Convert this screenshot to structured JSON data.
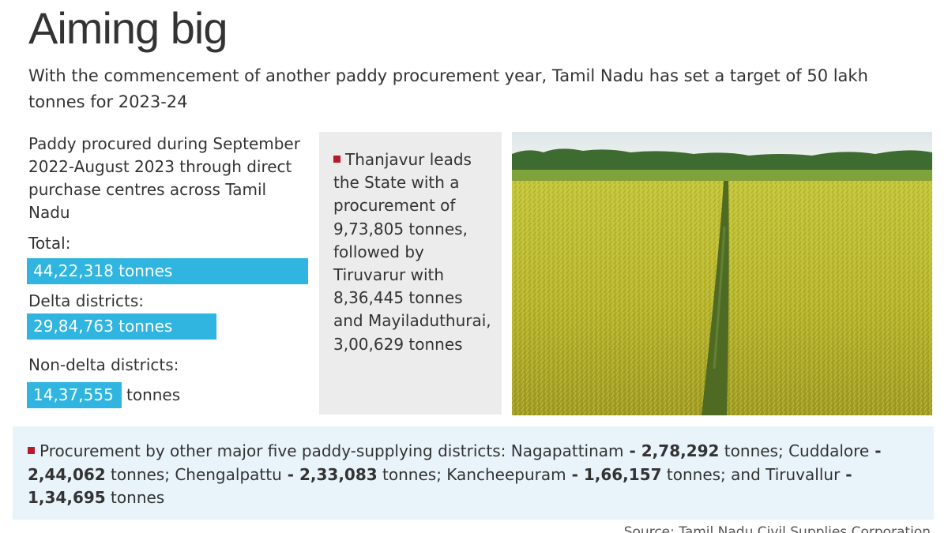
{
  "header": {
    "title": "Aiming big",
    "subtitle": "With the commencement of another paddy procurement year, Tamil Nadu has set a target of 50 lakh tonnes for 2023-24"
  },
  "procured": {
    "lead": "Paddy procured during September 2022-August 2023 through direct purchase centres across Tamil Nadu"
  },
  "chart_data": {
    "type": "bar",
    "orientation": "horizontal",
    "unit": "tonnes",
    "categories": [
      "Total:",
      "Delta districts:",
      "Non-delta districts:"
    ],
    "values": [
      4422318,
      2984763,
      1437555
    ],
    "value_labels": [
      "44,22,318",
      "29,84,763",
      "14,37,555"
    ],
    "bar_color": "#2fb5df"
  },
  "side_note": {
    "text": "Thanjavur leads the State with a procurement of 9,73,805 tonnes, followed by Tiruvarur with 8,36,445 tonnes and Mayiladuthurai, 3,00,629 tonnes"
  },
  "bottom_note": {
    "intro": "Procurement by other major five paddy-supplying districts:",
    "districts": [
      {
        "name": "Nagapattinam",
        "value": "2,78,292",
        "suffix": " tonnes;"
      },
      {
        "name": "Cuddalore",
        "value": "2,44,062",
        "suffix": " tonnes;"
      },
      {
        "name": "Chengalpattu",
        "value": "2,33,083",
        "suffix": " tonnes;"
      },
      {
        "name": "Kancheepuram",
        "value": "1,66,157",
        "suffix": " tonnes; and"
      },
      {
        "name": "Tiruvallur",
        "value": "1,34,695",
        "suffix": " tonnes"
      }
    ]
  },
  "source": "Source: Tamil Nadu Civil Supplies Corporation",
  "colors": {
    "bar": "#2fb5df",
    "bullet": "#b8192d",
    "side_panel": "#ececec",
    "note_panel": "#e8f3fa"
  }
}
